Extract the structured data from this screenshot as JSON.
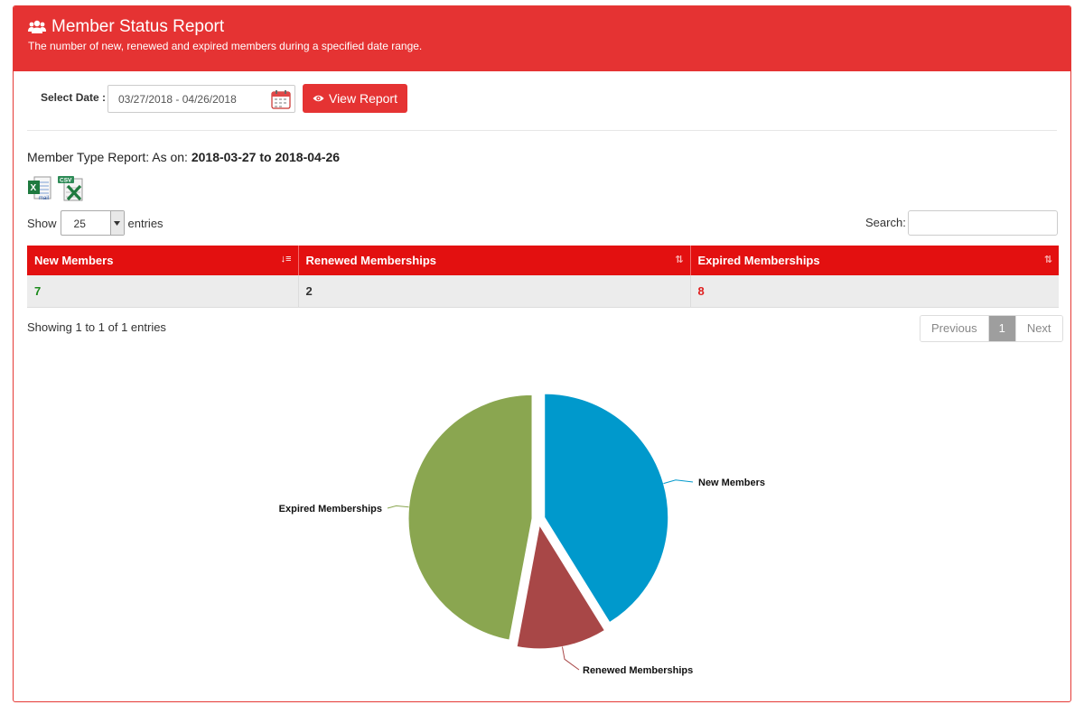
{
  "header": {
    "title": "Member Status Report",
    "subtitle": "The number of new, renewed and expired members during a specified date range."
  },
  "filter": {
    "label": "Select Date :",
    "date_range": "03/27/2018 - 04/26/2018",
    "view_button": "View Report"
  },
  "report": {
    "prefix": "Member Type Report: As on: ",
    "range": "2018-03-27 to 2018-04-26"
  },
  "exports": [
    {
      "icon": "excel-export-icon"
    },
    {
      "icon": "csv-export-icon"
    }
  ],
  "table_controls": {
    "show_label": "Show",
    "page_size": "25",
    "entries_label": "entries",
    "search_label": "Search:"
  },
  "table": {
    "headers": [
      "New Members",
      "Renewed Memberships",
      "Expired Memberships"
    ],
    "rows": [
      [
        "7",
        "2",
        "8"
      ]
    ]
  },
  "footer": {
    "info": "Showing 1 to 1 of 1 entries",
    "previous": "Previous",
    "current_page": "1",
    "next": "Next"
  },
  "colors": {
    "brand": "#e53333",
    "header_row": "#e31010",
    "new_value": "#1a8a1a",
    "expired_value": "#e02020"
  },
  "chart_data": {
    "type": "pie",
    "slices": [
      {
        "label": "New Members",
        "value": 7,
        "color": "#0099cc"
      },
      {
        "label": "Renewed Memberships",
        "value": 2,
        "color": "#a84747"
      },
      {
        "label": "Expired Memberships",
        "value": 8,
        "color": "#8aa650"
      }
    ],
    "legend": "none",
    "data_labels": "outside"
  }
}
